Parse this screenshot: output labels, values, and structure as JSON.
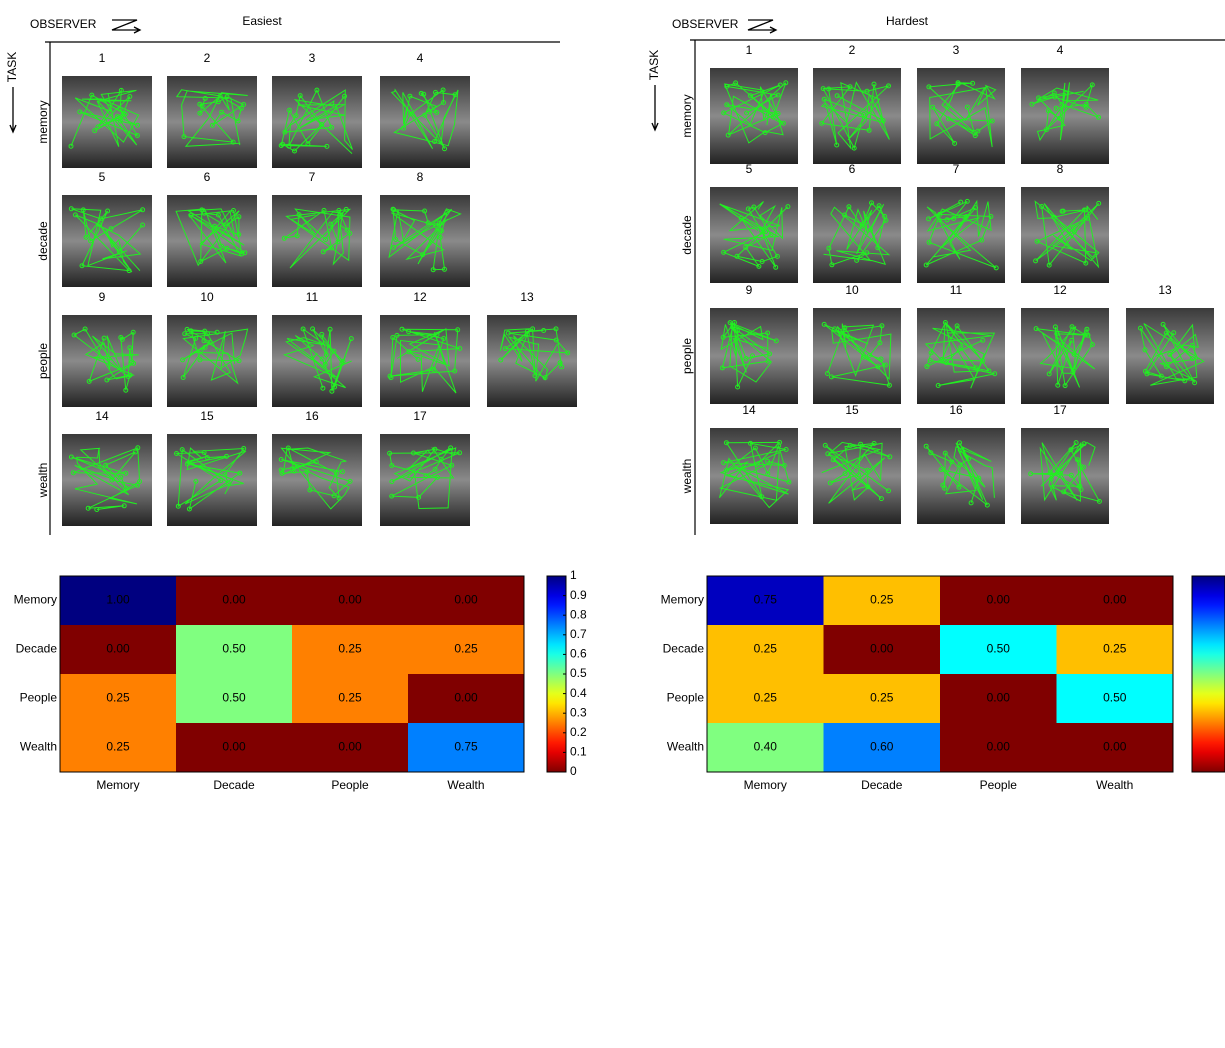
{
  "panels": [
    {
      "title": "Easiest",
      "observer_label": "OBSERVER",
      "task_label": "TASK",
      "rows": [
        {
          "task": "memory",
          "observers": [
            1,
            2,
            3,
            4
          ]
        },
        {
          "task": "decade",
          "observers": [
            5,
            6,
            7,
            8
          ]
        },
        {
          "task": "people",
          "observers": [
            9,
            10,
            11,
            12,
            13
          ]
        },
        {
          "task": "wealth",
          "observers": [
            14,
            15,
            16,
            17
          ]
        }
      ]
    },
    {
      "title": "Hardest",
      "observer_label": "OBSERVER",
      "task_label": "TASK",
      "rows": [
        {
          "task": "memory",
          "observers": [
            1,
            2,
            3,
            4
          ]
        },
        {
          "task": "decade",
          "observers": [
            5,
            6,
            7,
            8
          ]
        },
        {
          "task": "people",
          "observers": [
            9,
            10,
            11,
            12,
            13
          ]
        },
        {
          "task": "wealth",
          "observers": [
            14,
            15,
            16,
            17
          ]
        }
      ]
    }
  ],
  "chart_data": [
    {
      "type": "heatmap",
      "y_categories": [
        "Memory",
        "Decade",
        "People",
        "Wealth"
      ],
      "x_categories": [
        "Memory",
        "Decade",
        "People",
        "Wealth"
      ],
      "values": [
        [
          1,
          0,
          0,
          0
        ],
        [
          0,
          0.5,
          0.25,
          0.25
        ],
        [
          0.25,
          0.5,
          0.25,
          0
        ],
        [
          0.25,
          0,
          0,
          0.75
        ]
      ],
      "value_labels": [
        [
          "1.00",
          "0.00",
          "0.00",
          "0.00"
        ],
        [
          "0.00",
          "0.50",
          "0.25",
          "0.25"
        ],
        [
          "0.25",
          "0.50",
          "0.25",
          "0.00"
        ],
        [
          "0.25",
          "0.00",
          "0.00",
          "0.75"
        ]
      ],
      "zlim": [
        0,
        1
      ],
      "colorbar_ticks": [
        0,
        0.1,
        0.2,
        0.3,
        0.4,
        0.5,
        0.6,
        0.7,
        0.8,
        0.9,
        1
      ]
    },
    {
      "type": "heatmap",
      "y_categories": [
        "Memory",
        "Decade",
        "People",
        "Wealth"
      ],
      "x_categories": [
        "Memory",
        "Decade",
        "People",
        "Wealth"
      ],
      "values": [
        [
          0.75,
          0.25,
          0,
          0
        ],
        [
          0.25,
          0,
          0.5,
          0.25
        ],
        [
          0.25,
          0.25,
          0,
          0.5
        ],
        [
          0.4,
          0.6,
          0,
          0
        ]
      ],
      "value_labels": [
        [
          "0.75",
          "0.25",
          "0.00",
          "0.00"
        ],
        [
          "0.25",
          "0.00",
          "0.50",
          "0.25"
        ],
        [
          "0.25",
          "0.25",
          "0.00",
          "0.50"
        ],
        [
          "0.40",
          "0.60",
          "0.00",
          "0.00"
        ]
      ],
      "zlim": [
        0,
        0.8
      ]
    }
  ]
}
